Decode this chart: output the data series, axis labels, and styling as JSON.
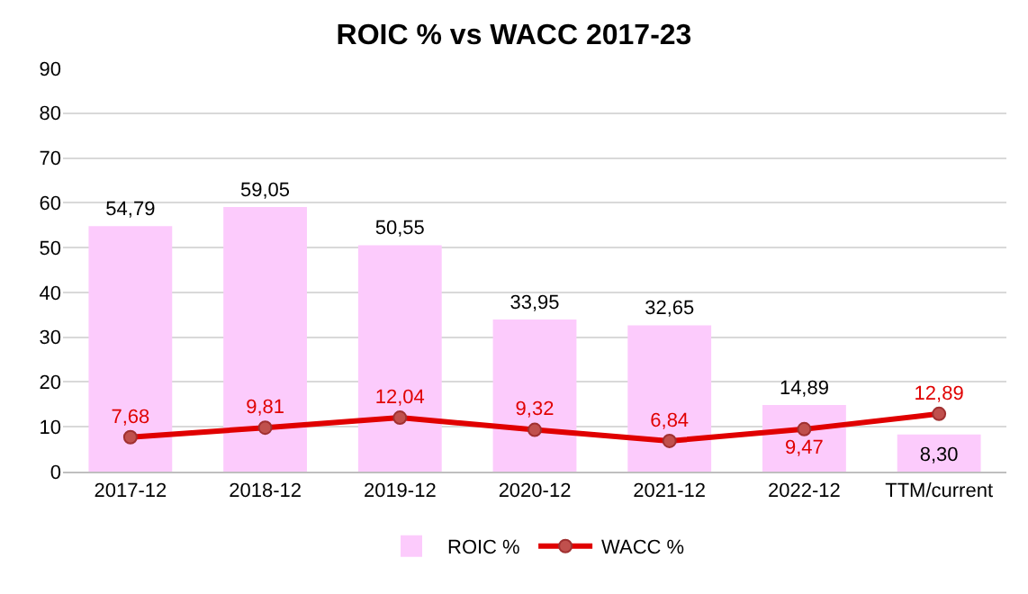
{
  "chart_data": {
    "type": "bar",
    "title": "ROIC % vs WACC 2017-23",
    "categories": [
      "2017-12",
      "2018-12",
      "2019-12",
      "2020-12",
      "2021-12",
      "2022-12",
      "TTM/current"
    ],
    "series": [
      {
        "name": "ROIC %",
        "color": "#fccbfc",
        "values": [
          54.79,
          59.05,
          50.55,
          33.95,
          32.65,
          14.89,
          8.3
        ],
        "value_labels": [
          "54,79",
          "59,05",
          "50,55",
          "33,95",
          "32,65",
          "14,89",
          "8,30"
        ]
      },
      {
        "name": "WACC %",
        "type": "line",
        "color": "#e00000",
        "marker": "circle",
        "values": [
          7.68,
          9.81,
          12.04,
          9.32,
          6.84,
          9.47,
          12.89
        ],
        "value_labels": [
          "7,68",
          "9,81",
          "12,04",
          "9,32",
          "6,84",
          "9,47",
          "12,89"
        ]
      }
    ],
    "ylim": [
      0,
      90
    ],
    "yticks": [
      0,
      10,
      20,
      30,
      40,
      50,
      60,
      70,
      80,
      90
    ],
    "grid": "y",
    "legend": "bottom"
  }
}
